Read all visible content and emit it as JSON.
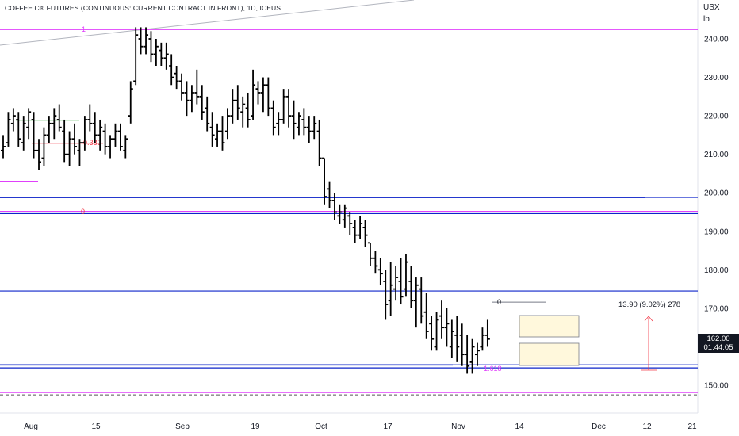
{
  "header": {
    "title": "COFFEE C® FUTURES (CONTINUOUS: CURRENT CONTRACT IN FRONT), 1D, ICEUS",
    "unit_top": "USX",
    "unit_bottom": "lb"
  },
  "price_tag": {
    "price": "162.00",
    "countdown": "01:44:05"
  },
  "chart_data": {
    "type": "ohlc-bar",
    "title": "COFFEE C® FUTURES (CONTINUOUS: CURRENT CONTRACT IN FRONT), 1D, ICEUS",
    "y_axis": {
      "ticks": [
        "240.00",
        "230.00",
        "220.00",
        "210.00",
        "200.00",
        "190.00",
        "180.00",
        "170.00",
        "150.00"
      ],
      "tick_values": [
        240,
        230,
        220,
        210,
        200,
        190,
        180,
        170,
        150
      ],
      "range": [
        143.5,
        248.6
      ]
    },
    "x_axis": {
      "ticks": [
        "Aug",
        "15",
        "Sep",
        "19",
        "Oct",
        "17",
        "Nov",
        "14",
        "Dec",
        "12",
        "21"
      ]
    },
    "annotations": {
      "fib_labels": [
        "1",
        "0.382",
        "0",
        "0",
        "1.618"
      ],
      "measure_label": "13.90 (9.02%) 278"
    },
    "horizontal_levels": [
      {
        "value": 242.4,
        "color": "#e040fb"
      },
      {
        "value": 198.8,
        "color": "#0d24c9"
      },
      {
        "value": 195.2,
        "color": "#e040fb"
      },
      {
        "value": 194.6,
        "color": "#0d24c9"
      },
      {
        "value": 174.5,
        "color": "#0d24c9"
      },
      {
        "value": 155.3,
        "color": "#0d24c9"
      },
      {
        "value": 154.5,
        "color": "#0d24c9"
      },
      {
        "value": 148.1,
        "color": "#e040fb"
      },
      {
        "value": 147.5,
        "color": "#555555"
      }
    ],
    "bars": [
      [
        211,
        215,
        209,
        212
      ],
      [
        213,
        221,
        212,
        219
      ],
      [
        218,
        222,
        216,
        220
      ],
      [
        219,
        221,
        212,
        214
      ],
      [
        213,
        220,
        211,
        218
      ],
      [
        217,
        222,
        214,
        221
      ],
      [
        219,
        221,
        209,
        211
      ],
      [
        211,
        214,
        206,
        208
      ],
      [
        209,
        217,
        207,
        215
      ],
      [
        215,
        220,
        213,
        218
      ],
      [
        218,
        222,
        214,
        220
      ],
      [
        219,
        223,
        216,
        217
      ],
      [
        216,
        219,
        208,
        210
      ],
      [
        210,
        216,
        207,
        214
      ],
      [
        214,
        218,
        210,
        212
      ],
      [
        211,
        214,
        207,
        213
      ],
      [
        213,
        220,
        211,
        219
      ],
      [
        219,
        223,
        216,
        218
      ],
      [
        218,
        221,
        213,
        215
      ],
      [
        215,
        219,
        211,
        217
      ],
      [
        216,
        218,
        210,
        212
      ],
      [
        212,
        215,
        209,
        214
      ],
      [
        214,
        218,
        212,
        216
      ],
      [
        216,
        218,
        211,
        212
      ],
      [
        211,
        215,
        209,
        214
      ],
      [
        220,
        229,
        218,
        227
      ],
      [
        229,
        243,
        228,
        241
      ],
      [
        240,
        243,
        236,
        238
      ],
      [
        238,
        243,
        236,
        241
      ],
      [
        240,
        242,
        234,
        236
      ],
      [
        236,
        240,
        233,
        238
      ],
      [
        237,
        239,
        233,
        235
      ],
      [
        235,
        239,
        232,
        236
      ],
      [
        233,
        236,
        228,
        230
      ],
      [
        231,
        233,
        227,
        229
      ],
      [
        229,
        231,
        224,
        226
      ],
      [
        226,
        229,
        220,
        224
      ],
      [
        224,
        228,
        221,
        226
      ],
      [
        226,
        232,
        223,
        225
      ],
      [
        225,
        228,
        219,
        221
      ],
      [
        222,
        225,
        216,
        218
      ],
      [
        217,
        221,
        212,
        215
      ],
      [
        214,
        218,
        212,
        216
      ],
      [
        216,
        220,
        211,
        213
      ],
      [
        216,
        222,
        214,
        220
      ],
      [
        220,
        227,
        218,
        224
      ],
      [
        224,
        228,
        219,
        222
      ],
      [
        221,
        225,
        217,
        223
      ],
      [
        222,
        226,
        217,
        219
      ],
      [
        220,
        232,
        219,
        228
      ],
      [
        227,
        229,
        223,
        226
      ],
      [
        226,
        230,
        221,
        228
      ],
      [
        228,
        230,
        220,
        222
      ],
      [
        222,
        224,
        215,
        217
      ],
      [
        218,
        221,
        215,
        219
      ],
      [
        219,
        227,
        218,
        225
      ],
      [
        225,
        227,
        217,
        220
      ],
      [
        220,
        224,
        214,
        218
      ],
      [
        217,
        221,
        215,
        220
      ],
      [
        219,
        222,
        215,
        217
      ],
      [
        217,
        220,
        213,
        216
      ],
      [
        216,
        220,
        214,
        218
      ],
      [
        216,
        219,
        207,
        209
      ],
      [
        209,
        206,
        197,
        199
      ],
      [
        201,
        203,
        196,
        198
      ],
      [
        198,
        200,
        193,
        195
      ],
      [
        194,
        197,
        192,
        195
      ],
      [
        193,
        197,
        191,
        196
      ],
      [
        194,
        195,
        189,
        192
      ],
      [
        191,
        193,
        187,
        189
      ],
      [
        189,
        194,
        188,
        192
      ],
      [
        191,
        193,
        186,
        189
      ],
      [
        187,
        186,
        181,
        183
      ],
      [
        183,
        185,
        179,
        181
      ],
      [
        180,
        183,
        176,
        179
      ],
      [
        177,
        180,
        167,
        171
      ],
      [
        172,
        182,
        168,
        176
      ],
      [
        175,
        181,
        172,
        178
      ],
      [
        177,
        183,
        171,
        173
      ],
      [
        175,
        184,
        173,
        182
      ],
      [
        177,
        181,
        170,
        172
      ],
      [
        172,
        178,
        165,
        176
      ],
      [
        175,
        178,
        166,
        168
      ],
      [
        169,
        174,
        162,
        164
      ],
      [
        166,
        168,
        159,
        162
      ],
      [
        160,
        169,
        159,
        167
      ],
      [
        168,
        172,
        162,
        165
      ],
      [
        165,
        170,
        160,
        166
      ],
      [
        160,
        167,
        157,
        164
      ],
      [
        163,
        168,
        156,
        160
      ],
      [
        163,
        166,
        155,
        158
      ],
      [
        158,
        163,
        153,
        155
      ],
      [
        156,
        162,
        153,
        160
      ],
      [
        158,
        161,
        155,
        159
      ],
      [
        160,
        165,
        159,
        163
      ],
      [
        163,
        167,
        160,
        162
      ]
    ],
    "x_day_index_of_ticks": [
      0,
      11,
      22,
      33,
      44,
      55,
      66,
      77,
      88,
      99,
      106
    ]
  }
}
